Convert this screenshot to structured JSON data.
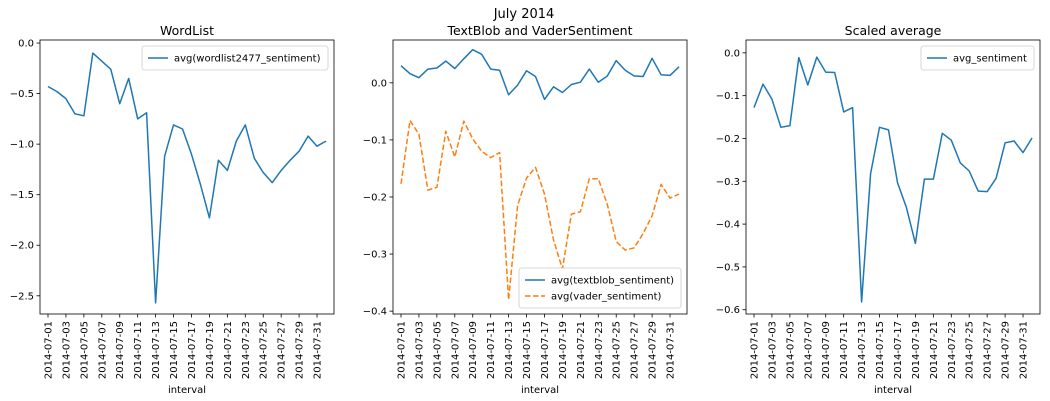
{
  "figure": {
    "suptitle": "July 2014"
  },
  "chart_data": [
    {
      "type": "line",
      "title": "WordList",
      "xlabel": "interval",
      "ylabel": "",
      "ylim": [
        -2.68,
        0.03
      ],
      "yticks": [
        0.0,
        -0.5,
        -1.0,
        -1.5,
        -2.0,
        -2.5
      ],
      "ytick_labels": [
        "0.0",
        "−0.5",
        "−1.0",
        "−1.5",
        "−2.0",
        "−2.5"
      ],
      "legend_position": "upper-right",
      "x": [
        "2014-07-01",
        "2014-07-02",
        "2014-07-03",
        "2014-07-04",
        "2014-07-05",
        "2014-07-06",
        "2014-07-07",
        "2014-07-08",
        "2014-07-09",
        "2014-07-10",
        "2014-07-11",
        "2014-07-12",
        "2014-07-13",
        "2014-07-14",
        "2014-07-15",
        "2014-07-16",
        "2014-07-17",
        "2014-07-18",
        "2014-07-19",
        "2014-07-20",
        "2014-07-21",
        "2014-07-22",
        "2014-07-23",
        "2014-07-24",
        "2014-07-25",
        "2014-07-26",
        "2014-07-27",
        "2014-07-28",
        "2014-07-29",
        "2014-07-30",
        "2014-07-31",
        "2014-08-01"
      ],
      "xtick_labels": [
        "2014-07-01",
        "2014-07-03",
        "2014-07-05",
        "2014-07-07",
        "2014-07-09",
        "2014-07-11",
        "2014-07-13",
        "2014-07-15",
        "2014-07-17",
        "2014-07-19",
        "2014-07-21",
        "2014-07-23",
        "2014-07-25",
        "2014-07-27",
        "2014-07-29",
        "2014-07-31"
      ],
      "series": [
        {
          "name": "avg(wordlist2477_sentiment)",
          "color": "#1f77b4",
          "style": "solid",
          "values": [
            -0.43,
            -0.48,
            -0.55,
            -0.7,
            -0.72,
            -0.1,
            -0.18,
            -0.26,
            -0.6,
            -0.35,
            -0.75,
            -0.69,
            -2.57,
            -1.12,
            -0.81,
            -0.85,
            -1.1,
            -1.4,
            -1.73,
            -1.16,
            -1.26,
            -0.97,
            -0.81,
            -1.14,
            -1.28,
            -1.38,
            -1.26,
            -1.16,
            -1.07,
            -0.92,
            -1.02,
            -0.97
          ]
        }
      ]
    },
    {
      "type": "line",
      "title": "TextBlob and VaderSentiment",
      "xlabel": "interval",
      "ylabel": "",
      "ylim": [
        -0.405,
        0.075
      ],
      "yticks": [
        0.0,
        -0.1,
        -0.2,
        -0.3,
        -0.4
      ],
      "ytick_labels": [
        "0.0",
        "−0.1",
        "−0.2",
        "−0.3",
        "−0.4"
      ],
      "legend_position": "lower-right",
      "x": [
        "2014-07-01",
        "2014-07-02",
        "2014-07-03",
        "2014-07-04",
        "2014-07-05",
        "2014-07-06",
        "2014-07-07",
        "2014-07-08",
        "2014-07-09",
        "2014-07-10",
        "2014-07-11",
        "2014-07-12",
        "2014-07-13",
        "2014-07-14",
        "2014-07-15",
        "2014-07-16",
        "2014-07-17",
        "2014-07-18",
        "2014-07-19",
        "2014-07-20",
        "2014-07-21",
        "2014-07-22",
        "2014-07-23",
        "2014-07-24",
        "2014-07-25",
        "2014-07-26",
        "2014-07-27",
        "2014-07-28",
        "2014-07-29",
        "2014-07-30",
        "2014-07-31",
        "2014-08-01"
      ],
      "xtick_labels": [
        "2014-07-01",
        "2014-07-03",
        "2014-07-05",
        "2014-07-07",
        "2014-07-09",
        "2014-07-11",
        "2014-07-13",
        "2014-07-15",
        "2014-07-17",
        "2014-07-19",
        "2014-07-21",
        "2014-07-23",
        "2014-07-25",
        "2014-07-27",
        "2014-07-29",
        "2014-07-31"
      ],
      "series": [
        {
          "name": "avg(textblob_sentiment)",
          "color": "#1f77b4",
          "style": "solid",
          "values": [
            0.03,
            0.016,
            0.009,
            0.024,
            0.026,
            0.038,
            0.025,
            0.042,
            0.058,
            0.05,
            0.024,
            0.022,
            -0.021,
            -0.004,
            0.021,
            0.011,
            -0.029,
            -0.007,
            -0.017,
            -0.003,
            0.001,
            0.024,
            0.001,
            0.012,
            0.039,
            0.022,
            0.012,
            0.011,
            0.043,
            0.014,
            0.013,
            0.028
          ]
        },
        {
          "name": "avg(vader_sentiment)",
          "color": "#ff7f0e",
          "style": "dashed",
          "values": [
            -0.177,
            -0.066,
            -0.09,
            -0.188,
            -0.183,
            -0.085,
            -0.13,
            -0.067,
            -0.098,
            -0.12,
            -0.131,
            -0.122,
            -0.38,
            -0.215,
            -0.167,
            -0.148,
            -0.195,
            -0.275,
            -0.326,
            -0.23,
            -0.226,
            -0.168,
            -0.168,
            -0.213,
            -0.278,
            -0.293,
            -0.289,
            -0.264,
            -0.233,
            -0.178,
            -0.202,
            -0.195
          ]
        }
      ]
    },
    {
      "type": "line",
      "title": "Scaled average",
      "xlabel": "interval",
      "ylabel": "",
      "ylim": [
        -0.61,
        0.03
      ],
      "yticks": [
        0.0,
        -0.1,
        -0.2,
        -0.3,
        -0.4,
        -0.5,
        -0.6
      ],
      "ytick_labels": [
        "0.0",
        "−0.1",
        "−0.2",
        "−0.3",
        "−0.4",
        "−0.5",
        "−0.6"
      ],
      "legend_position": "upper-right",
      "x": [
        "2014-07-01",
        "2014-07-02",
        "2014-07-03",
        "2014-07-04",
        "2014-07-05",
        "2014-07-06",
        "2014-07-07",
        "2014-07-08",
        "2014-07-09",
        "2014-07-10",
        "2014-07-11",
        "2014-07-12",
        "2014-07-13",
        "2014-07-14",
        "2014-07-15",
        "2014-07-16",
        "2014-07-17",
        "2014-07-18",
        "2014-07-19",
        "2014-07-20",
        "2014-07-21",
        "2014-07-22",
        "2014-07-23",
        "2014-07-24",
        "2014-07-25",
        "2014-07-26",
        "2014-07-27",
        "2014-07-28",
        "2014-07-29",
        "2014-07-30",
        "2014-07-31",
        "2014-08-01"
      ],
      "xtick_labels": [
        "2014-07-01",
        "2014-07-03",
        "2014-07-05",
        "2014-07-07",
        "2014-07-09",
        "2014-07-11",
        "2014-07-13",
        "2014-07-15",
        "2014-07-17",
        "2014-07-19",
        "2014-07-21",
        "2014-07-23",
        "2014-07-25",
        "2014-07-27",
        "2014-07-29",
        "2014-07-31"
      ],
      "series": [
        {
          "name": "avg_sentiment",
          "color": "#1f77b4",
          "style": "solid",
          "values": [
            -0.128,
            -0.073,
            -0.108,
            -0.174,
            -0.17,
            -0.011,
            -0.075,
            -0.01,
            -0.045,
            -0.046,
            -0.138,
            -0.128,
            -0.582,
            -0.282,
            -0.174,
            -0.18,
            -0.303,
            -0.362,
            -0.445,
            -0.295,
            -0.295,
            -0.188,
            -0.204,
            -0.257,
            -0.276,
            -0.323,
            -0.324,
            -0.293,
            -0.21,
            -0.206,
            -0.233,
            -0.199
          ]
        }
      ]
    }
  ]
}
